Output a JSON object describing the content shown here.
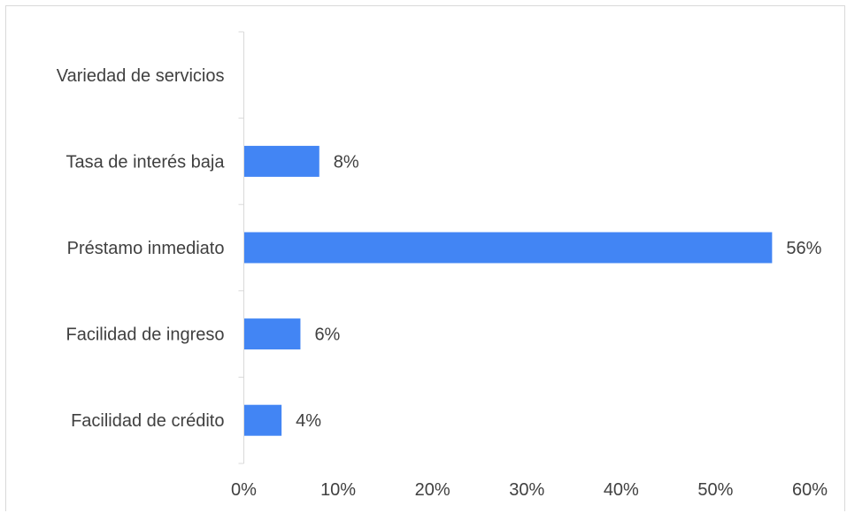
{
  "chart_data": {
    "type": "bar",
    "orientation": "horizontal",
    "title": "",
    "xlabel": "",
    "ylabel": "",
    "categories": [
      "Variedad de servicios",
      "Tasa de interés baja",
      "Préstamo inmediato",
      "Facilidad de ingreso",
      "Facilidad de crédito"
    ],
    "values": [
      0,
      8,
      56,
      6,
      4
    ],
    "data_labels": [
      "",
      "8%",
      "56%",
      "6%",
      "4%"
    ],
    "xlim": [
      0,
      60
    ],
    "xticks": [
      0,
      10,
      20,
      30,
      40,
      50,
      60
    ],
    "xtick_labels": [
      "0%",
      "10%",
      "20%",
      "30%",
      "40%",
      "50%",
      "60%"
    ],
    "bar_color": "#4285f4",
    "axis_color": "#d9d9d9",
    "text_color": "#404040",
    "grid": false,
    "legend": "none"
  }
}
